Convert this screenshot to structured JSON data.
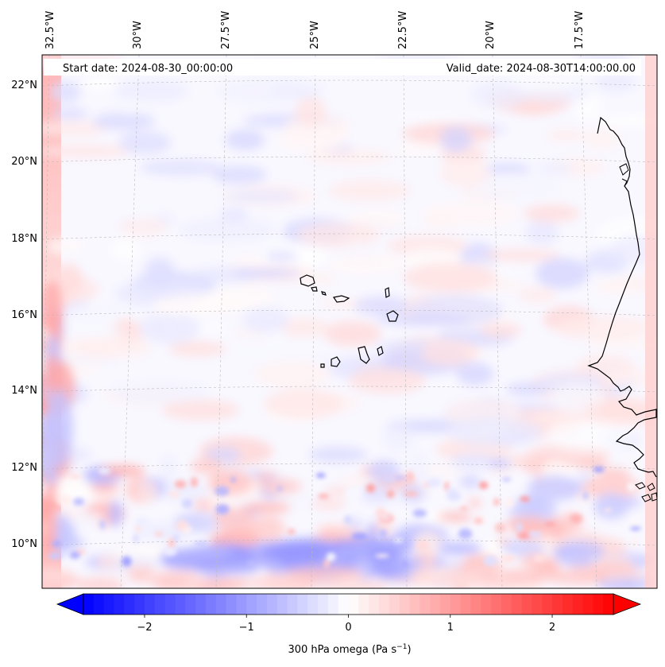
{
  "map": {
    "start_date_label": "Start date: 2024-08-30_00:00:00",
    "valid_date_label": "Valid_date: 2024-08-30T14:00:00.00",
    "lon_ticks": [
      "32.5°W",
      "30°W",
      "27.5°W",
      "25°W",
      "22.5°W",
      "20°W",
      "17.5°W"
    ],
    "lat_ticks": [
      "22°N",
      "20°N",
      "18°N",
      "16°N",
      "14°N",
      "12°N",
      "10°N"
    ],
    "colorbar": {
      "tick_labels": [
        "−2",
        "−1",
        "0",
        "1",
        "2"
      ],
      "label": "300 hPa omega (Pa s",
      "label_exponent": "−1",
      "label_suffix": ")",
      "vmin": -2.6,
      "vmax": 2.6,
      "colors": {
        "neg": "#0000ff",
        "mid": "#ffffff",
        "pos": "#ff0000"
      }
    }
  },
  "chart_data": {
    "type": "heatmap",
    "variable": "300 hPa omega",
    "units": "Pa s^-1",
    "color_range": [
      -2.6,
      2.6
    ],
    "colorbar_ticks": [
      -2,
      -1,
      0,
      1,
      2
    ],
    "longitude_ticks_deg": [
      -32.5,
      -30,
      -27.5,
      -25,
      -22.5,
      -20,
      -17.5
    ],
    "latitude_ticks_deg": [
      22,
      20,
      18,
      16,
      14,
      12,
      10
    ],
    "start_date": "2024-08-30_00:00:00",
    "valid_date": "2024-08-30T14:00:00.00"
  }
}
